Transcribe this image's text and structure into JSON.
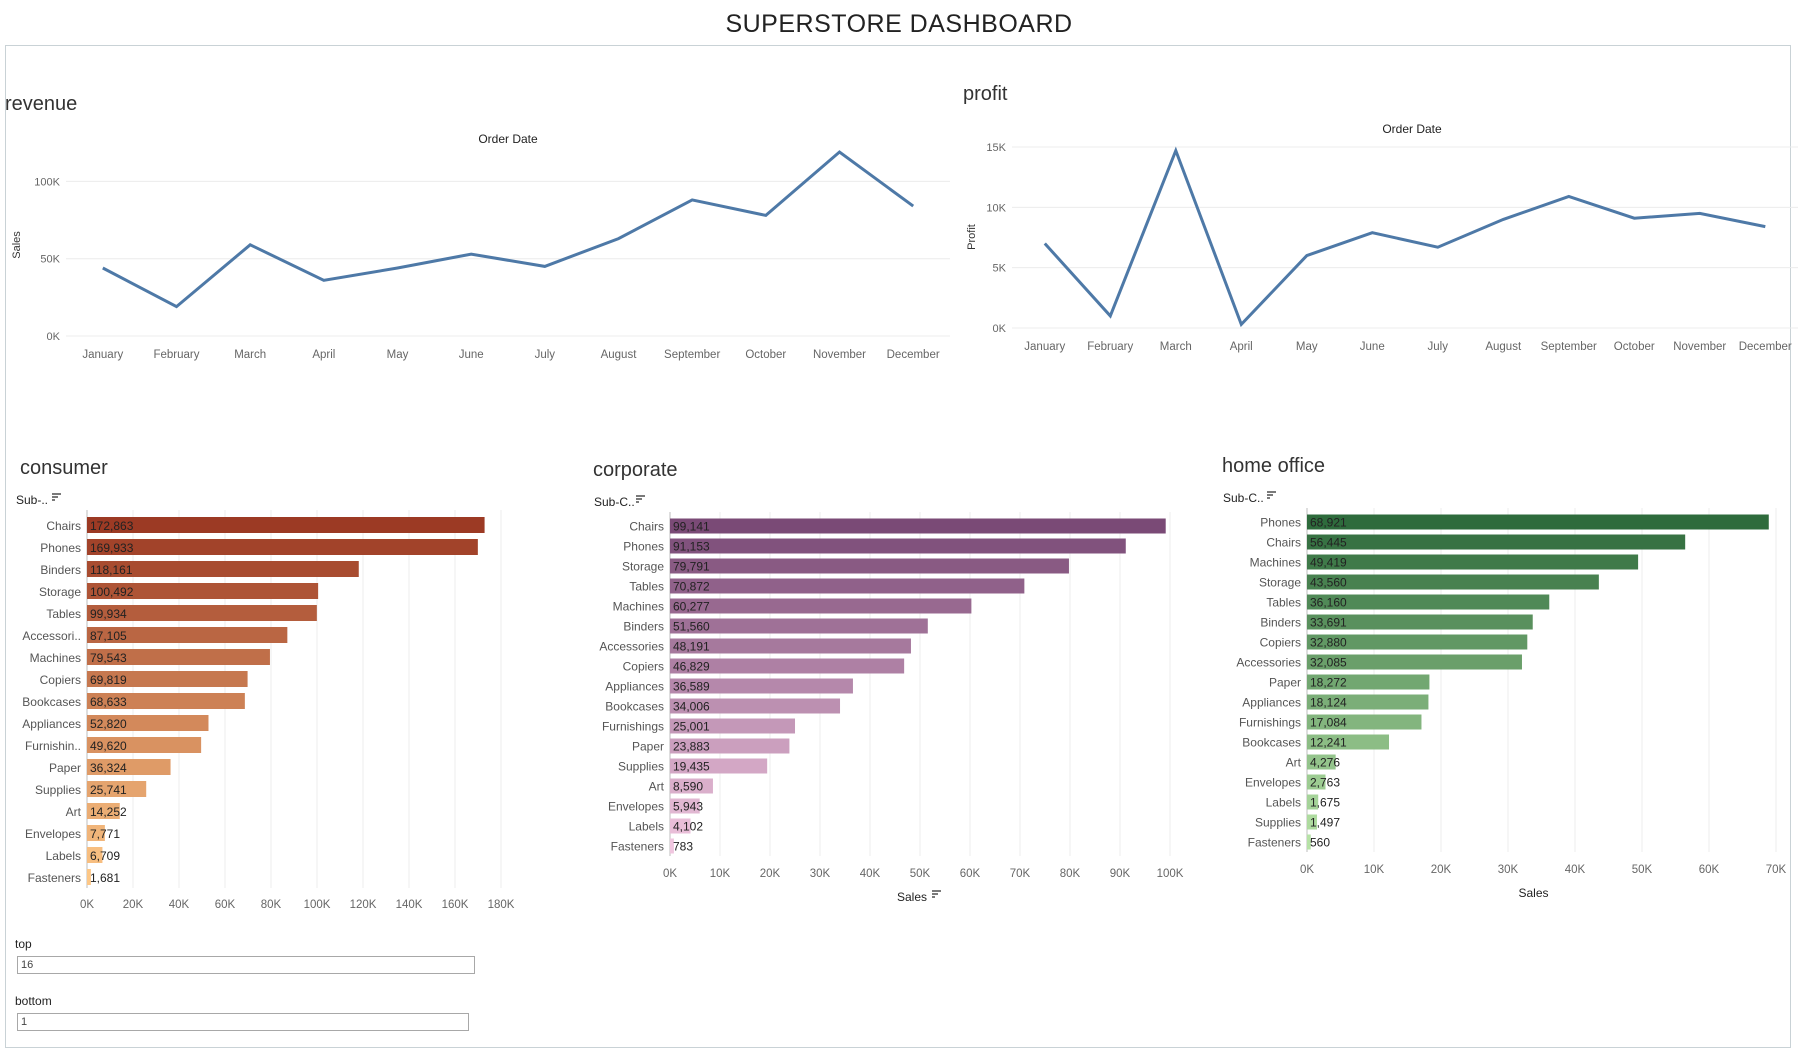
{
  "dashboard_title": "SUPERSTORE DASHBOARD",
  "months": [
    "January",
    "February",
    "March",
    "April",
    "May",
    "June",
    "July",
    "August",
    "September",
    "October",
    "November",
    "December"
  ],
  "panels": {
    "revenue": {
      "title": "revenue",
      "header": "Order Date",
      "ylabel": "Sales",
      "yticks": [
        "0K",
        "50K",
        "100K"
      ]
    },
    "profit": {
      "title": "profit",
      "header": "Order Date",
      "ylabel": "Profit",
      "yticks": [
        "0K",
        "5K",
        "10K",
        "15K"
      ]
    },
    "consumer": {
      "title": "consumer",
      "axis_header": "Sub-..",
      "xticks": [
        "0K",
        "20K",
        "40K",
        "60K",
        "80K",
        "100K",
        "120K",
        "140K",
        "160K",
        "180K"
      ]
    },
    "corporate": {
      "title": "corporate",
      "axis_header": "Sub-C..",
      "xlabel": "Sales",
      "xticks": [
        "0K",
        "10K",
        "20K",
        "30K",
        "40K",
        "50K",
        "60K",
        "70K",
        "80K",
        "90K",
        "100K"
      ]
    },
    "home_office": {
      "title": "home office",
      "axis_header": "Sub-C..",
      "xlabel": "Sales",
      "xticks": [
        "0K",
        "10K",
        "20K",
        "30K",
        "40K",
        "50K",
        "60K",
        "70K"
      ]
    }
  },
  "filters": {
    "top_label": "top",
    "top_value": "16",
    "bottom_label": "bottom",
    "bottom_value": "1"
  },
  "colors": {
    "line": "#4e79a7"
  },
  "chart_data": [
    {
      "id": "revenue",
      "type": "line",
      "header": "Order Date",
      "ylabel": "Sales",
      "ylim": [
        0,
        130000
      ],
      "x": [
        "January",
        "February",
        "March",
        "April",
        "May",
        "June",
        "July",
        "August",
        "September",
        "October",
        "November",
        "December"
      ],
      "values": [
        44000,
        19000,
        59000,
        36000,
        44000,
        53000,
        45000,
        63000,
        88000,
        78000,
        119000,
        84000
      ]
    },
    {
      "id": "profit",
      "type": "line",
      "header": "Order Date",
      "ylabel": "Profit",
      "ylim": [
        0,
        15000
      ],
      "x": [
        "January",
        "February",
        "March",
        "April",
        "May",
        "June",
        "July",
        "August",
        "September",
        "October",
        "November",
        "December"
      ],
      "values": [
        7000,
        1000,
        14700,
        300,
        6000,
        7900,
        6700,
        9000,
        10900,
        9100,
        9500,
        8400
      ]
    },
    {
      "id": "consumer",
      "type": "bar",
      "xlim": [
        0,
        180000
      ],
      "categories": [
        "Chairs",
        "Phones",
        "Binders",
        "Storage",
        "Tables",
        "Accessori..",
        "Machines",
        "Copiers",
        "Bookcases",
        "Appliances",
        "Furnishin..",
        "Paper",
        "Supplies",
        "Art",
        "Envelopes",
        "Labels",
        "Fasteners"
      ],
      "values": [
        172863,
        169933,
        118161,
        100492,
        99934,
        87105,
        79543,
        69819,
        68633,
        52820,
        49620,
        36324,
        25741,
        14252,
        7771,
        6709,
        1681
      ],
      "labels": [
        "172,863",
        "169,933",
        "118,161",
        "100,492",
        "99,934",
        "87,105",
        "79,543",
        "69,819",
        "68,633",
        "52,820",
        "49,620",
        "36,324",
        "25,741",
        "14,252",
        "7,771",
        "6,709",
        "1,681"
      ],
      "color_dark": "#9c3a24",
      "color_light": "#fdc786"
    },
    {
      "id": "corporate",
      "type": "bar",
      "xlabel": "Sales",
      "xlim": [
        0,
        100000
      ],
      "categories": [
        "Chairs",
        "Phones",
        "Storage",
        "Tables",
        "Machines",
        "Binders",
        "Accessories",
        "Copiers",
        "Appliances",
        "Bookcases",
        "Furnishings",
        "Paper",
        "Supplies",
        "Art",
        "Envelopes",
        "Labels",
        "Fasteners"
      ],
      "values": [
        99141,
        91153,
        79791,
        70872,
        60277,
        51560,
        48191,
        46829,
        36589,
        34006,
        25001,
        23883,
        19435,
        8590,
        5943,
        4102,
        783
      ],
      "labels": [
        "99,141",
        "91,153",
        "79,791",
        "70,872",
        "60,277",
        "51,560",
        "48,191",
        "46,829",
        "36,589",
        "34,006",
        "25,001",
        "23,883",
        "19,435",
        "8,590",
        "5,943",
        "4,102",
        "783"
      ],
      "color_dark": "#7a4a76",
      "color_light": "#f0c6df"
    },
    {
      "id": "home_office",
      "type": "bar",
      "xlabel": "Sales",
      "xlim": [
        0,
        70000
      ],
      "categories": [
        "Phones",
        "Chairs",
        "Machines",
        "Storage",
        "Tables",
        "Binders",
        "Copiers",
        "Accessories",
        "Paper",
        "Appliances",
        "Furnishings",
        "Bookcases",
        "Art",
        "Envelopes",
        "Labels",
        "Supplies",
        "Fasteners"
      ],
      "values": [
        68921,
        56445,
        49419,
        43560,
        36160,
        33691,
        32880,
        32085,
        18272,
        18124,
        17084,
        12241,
        4276,
        2763,
        1675,
        1497,
        560
      ],
      "labels": [
        "68,921",
        "56,445",
        "49,419",
        "43,560",
        "36,160",
        "33,691",
        "32,880",
        "32,085",
        "18,272",
        "18,124",
        "17,084",
        "12,241",
        "4,276",
        "2,763",
        "1,675",
        "1,497",
        "560"
      ],
      "color_dark": "#2e6b3c",
      "color_light": "#b6e2a6"
    }
  ]
}
